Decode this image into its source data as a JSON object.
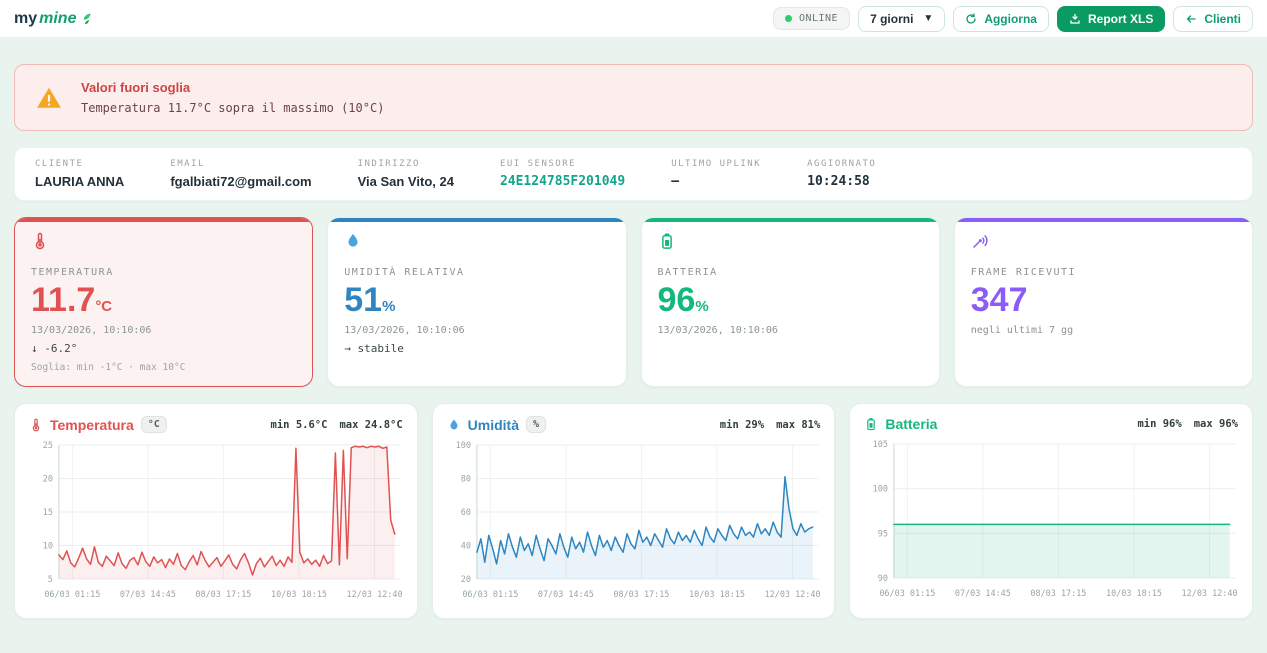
{
  "theme": {
    "background": "#e9f4ee",
    "accent_teal": "#12a58c",
    "button_green": "#0a9b62",
    "alarm_red": "#e05252",
    "humidity_blue": "#2e86c1",
    "battery_green": "#14b87a",
    "frames_purple": "#8b5cf6",
    "online_dot": "#2ecc71"
  },
  "header": {
    "logo_my": "my",
    "logo_mine": "mine",
    "online_label": "ONLINE",
    "period_value": "7 giorni",
    "refresh_label": "Aggiorna",
    "report_label": "Report XLS",
    "clients_label": "Clienti"
  },
  "alert": {
    "title": "Valori fuori soglia",
    "message": "Temperatura 11.7°C sopra il massimo (10°C)"
  },
  "client_info": {
    "fields": [
      {
        "label": "CLIENTE",
        "value": "LAURIA ANNA"
      },
      {
        "label": "EMAIL",
        "value": "fgalbiati72@gmail.com"
      },
      {
        "label": "INDIRIZZO",
        "value": "Via San Vito, 24"
      },
      {
        "label": "EUI SENSORE",
        "value": "24E124785F201049"
      },
      {
        "label": "ULTIMO UPLINK",
        "value": "—"
      },
      {
        "label": "AGGIORNATO",
        "value": "10:24:58"
      }
    ]
  },
  "stat_cards": [
    {
      "label": "TEMPERATURA",
      "value": "11.7",
      "unit": "°C",
      "timestamp": "13/03/2026, 10:10:06",
      "trend": "↓ -6.2°",
      "threshold": "Soglia: min -1°C · max 10°C"
    },
    {
      "label": "UMIDITÀ RELATIVA",
      "value": "51",
      "unit": "%",
      "timestamp": "13/03/2026, 10:10:06",
      "trend": "→ stabile",
      "threshold": ""
    },
    {
      "label": "BATTERIA",
      "value": "96",
      "unit": "%",
      "timestamp": "13/03/2026, 10:10:06",
      "trend": "",
      "threshold": ""
    },
    {
      "label": "FRAME RICEVUTI",
      "value": "347",
      "unit": "",
      "timestamp": "negli ultimi 7 gg",
      "trend": "",
      "threshold": ""
    }
  ],
  "chart_data": [
    {
      "type": "line",
      "title": "Temperatura",
      "unit": "°C",
      "min_label": "min 5.6°C",
      "max_label": "max 24.8°C",
      "color": "#e05252",
      "fill": "rgba(224,82,82,0.09)",
      "ylim": [
        5,
        25
      ],
      "yticks": [
        5,
        10,
        15,
        20,
        25
      ],
      "x_tick_labels": [
        "06/03 01:15",
        "07/03 14:45",
        "08/03 17:15",
        "10/03 18:15",
        "12/03 12:40"
      ],
      "values": [
        8.6,
        7.9,
        9.2,
        7.4,
        6.8,
        8.1,
        9.6,
        8.0,
        7.2,
        9.8,
        7.5,
        6.9,
        8.4,
        7.7,
        7.0,
        8.9,
        7.3,
        6.6,
        7.8,
        8.2,
        7.1,
        9.0,
        7.6,
        6.9,
        8.3,
        7.4,
        7.9,
        6.7,
        8.0,
        7.2,
        8.8,
        7.0,
        6.4,
        7.6,
        8.5,
        7.1,
        9.1,
        7.8,
        6.8,
        7.5,
        8.2,
        6.9,
        7.7,
        8.6,
        7.2,
        6.5,
        7.9,
        8.8,
        7.4,
        5.6,
        7.3,
        8.1,
        6.8,
        7.6,
        8.4,
        7.0,
        7.8,
        6.9,
        8.3,
        7.5,
        24.5,
        9.0,
        7.4,
        8.0,
        7.2,
        7.8,
        6.9,
        8.5,
        7.3,
        7.7,
        23.8,
        7.1,
        24.2,
        8.0,
        24.6,
        24.8,
        24.7,
        24.8,
        24.6,
        24.8,
        24.7,
        24.8,
        24.5,
        24.7,
        13.8,
        11.7
      ]
    },
    {
      "type": "line",
      "title": "Umidità",
      "unit": "%",
      "min_label": "min 29%",
      "max_label": "max 81%",
      "color": "#2e86c1",
      "fill": "rgba(46,134,193,0.10)",
      "ylim": [
        20,
        100
      ],
      "yticks": [
        20,
        40,
        60,
        80,
        100
      ],
      "x_tick_labels": [
        "06/03 01:15",
        "07/03 14:45",
        "08/03 17:15",
        "10/03 18:15",
        "12/03 12:40"
      ],
      "values": [
        36,
        44,
        30,
        46,
        38,
        29,
        43,
        35,
        47,
        39,
        33,
        45,
        37,
        41,
        34,
        46,
        38,
        31,
        44,
        40,
        35,
        47,
        39,
        33,
        45,
        38,
        42,
        36,
        48,
        40,
        34,
        46,
        39,
        43,
        37,
        45,
        40,
        36,
        47,
        41,
        38,
        49,
        42,
        45,
        40,
        47,
        43,
        39,
        50,
        44,
        41,
        48,
        43,
        46,
        42,
        49,
        44,
        40,
        51,
        45,
        42,
        50,
        46,
        43,
        52,
        47,
        44,
        51,
        46,
        48,
        45,
        53,
        47,
        50,
        46,
        54,
        48,
        45,
        81,
        62,
        50,
        46,
        53,
        48,
        50,
        51
      ]
    },
    {
      "type": "line",
      "title": "Batteria",
      "unit": "",
      "min_label": "min 96%",
      "max_label": "max 96%",
      "color": "#14b87a",
      "fill": "rgba(20,184,122,0.12)",
      "ylim": [
        90,
        105
      ],
      "yticks": [
        90,
        95,
        100,
        105
      ],
      "x_tick_labels": [
        "06/03 01:15",
        "07/03 14:45",
        "08/03 17:15",
        "10/03 18:15",
        "12/03 12:40"
      ],
      "values": [
        96,
        96,
        96,
        96,
        96,
        96,
        96,
        96,
        96,
        96
      ]
    }
  ]
}
